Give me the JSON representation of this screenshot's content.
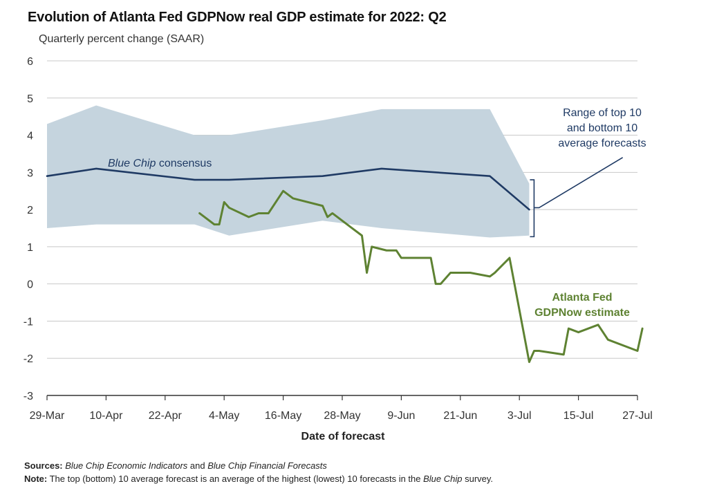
{
  "title": "Evolution of Atlanta Fed GDPNow real GDP estimate for 2022: Q2",
  "subtitle": "Quarterly percent change (SAAR)",
  "footnotes": {
    "sources_label": "Sources:",
    "sources_italic_1": "Blue Chip Economic Indicators",
    "sources_mid": " and ",
    "sources_italic_2": "Blue Chip Financial Forecasts",
    "note_label": "Note:",
    "note_text": " The top (bottom) 10 average forecast is an average of the highest (lowest) 10 forecasts in the ",
    "note_italic": "Blue Chip",
    "note_end": " survey."
  },
  "colors": {
    "band": "#c5d4de",
    "consensus": "#1f3a64",
    "gdpnow": "#5e8232",
    "grid": "#c8c8c8",
    "axis": "#333333"
  },
  "chart_data": {
    "type": "line",
    "xlabel": "Date of forecast",
    "ylabel": "",
    "ylim": [
      -3,
      6
    ],
    "yticks": [
      "-3",
      "-2",
      "-1",
      "0",
      "1",
      "2",
      "3",
      "4",
      "5",
      "6"
    ],
    "xticks": [
      "29-Mar",
      "10-Apr",
      "22-Apr",
      "4-May",
      "16-May",
      "28-May",
      "9-Jun",
      "21-Jun",
      "3-Jul",
      "15-Jul",
      "27-Jul"
    ],
    "grid": "horizontal",
    "band": {
      "name": "Range of top 10 and bottom 10 average forecasts",
      "x": [
        "29-Mar",
        "8-Apr",
        "28-Apr",
        "5-May",
        "24-May",
        "5-Jun",
        "27-Jun",
        "5-Jul"
      ],
      "upper": [
        4.3,
        4.8,
        4.0,
        4.0,
        4.4,
        4.7,
        4.7,
        2.7
      ],
      "lower": [
        1.5,
        1.6,
        1.6,
        1.3,
        1.7,
        1.5,
        1.25,
        1.3
      ]
    },
    "series": [
      {
        "name": "Blue Chip consensus",
        "x": [
          "29-Mar",
          "8-Apr",
          "28-Apr",
          "5-May",
          "24-May",
          "5-Jun",
          "27-Jun",
          "5-Jul"
        ],
        "values": [
          2.9,
          3.1,
          2.8,
          2.8,
          2.9,
          3.1,
          2.9,
          2.0
        ]
      },
      {
        "name": "Atlanta Fed GDPNow estimate",
        "x": [
          "29-Apr",
          "2-May",
          "3-May",
          "4-May",
          "5-May",
          "9-May",
          "11-May",
          "13-May",
          "16-May",
          "18-May",
          "24-May",
          "25-May",
          "26-May",
          "1-Jun",
          "2-Jun",
          "3-Jun",
          "6-Jun",
          "8-Jun",
          "9-Jun",
          "15-Jun",
          "16-Jun",
          "17-Jun",
          "19-Jun",
          "23-Jun",
          "27-Jun",
          "28-Jun",
          "1-Jul",
          "5-Jul",
          "6-Jul",
          "7-Jul",
          "12-Jul",
          "13-Jul",
          "15-Jul",
          "19-Jul",
          "21-Jul",
          "27-Jul",
          "28-Jul"
        ],
        "values": [
          1.9,
          1.6,
          1.6,
          2.2,
          2.05,
          1.8,
          1.9,
          1.9,
          2.5,
          2.3,
          2.1,
          1.8,
          1.9,
          1.3,
          0.3,
          1.0,
          0.9,
          0.9,
          0.7,
          0.7,
          0.0,
          0.0,
          0.3,
          0.3,
          0.2,
          0.3,
          0.7,
          -2.1,
          -1.8,
          -1.8,
          -1.9,
          -1.2,
          -1.3,
          -1.1,
          -1.5,
          -1.8,
          -1.2
        ]
      }
    ],
    "annotations": [
      {
        "text": "Blue Chip consensus",
        "series": "Blue Chip consensus"
      },
      {
        "text": "Range of top 10\nand bottom 10\naverage forecasts",
        "series": "band"
      },
      {
        "text": "Atlanta Fed\nGDPNow estimate",
        "series": "Atlanta Fed GDPNow estimate"
      }
    ]
  }
}
